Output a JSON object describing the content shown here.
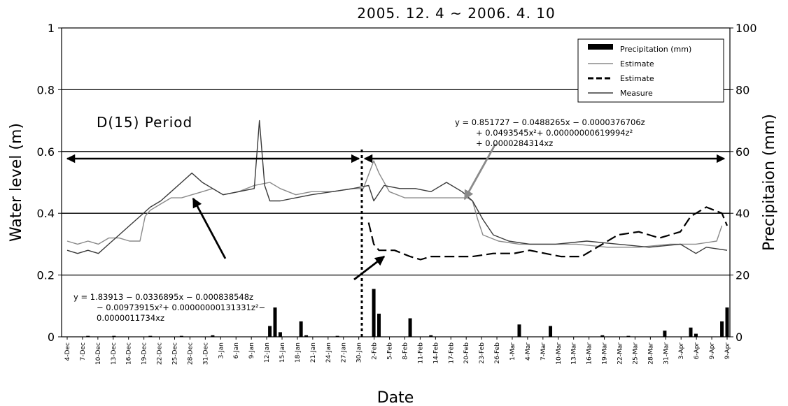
{
  "chart_data": {
    "type": "line",
    "title": "2005. 12. 4 ~ 2006. 4. 10",
    "xlabel": "Date",
    "ylabel": "Water level (m)",
    "y2label": "Precipitaion (mm)",
    "x_start": "2005-12-04",
    "x_end": "2006-04-10",
    "ylim": [
      0,
      1
    ],
    "yticks": [
      0,
      0.2,
      0.4,
      0.6,
      0.8,
      1
    ],
    "y2lim": [
      0,
      100
    ],
    "y2ticks": [
      0,
      20,
      40,
      60,
      80,
      100
    ],
    "xtick_labels": [
      "4-Dec",
      "7-Dec",
      "10-Dec",
      "13-Dec",
      "16-Dec",
      "19-Dec",
      "22-Dec",
      "25-Dec",
      "28-Dec",
      "31-Dec",
      "3-Jan",
      "6-Jan",
      "9-Jan",
      "12-Jan",
      "15-Jan",
      "18-Jan",
      "21-Jan",
      "24-Jan",
      "27-Jan",
      "30-Jan",
      "2-Feb",
      "5-Feb",
      "8-Feb",
      "11-Feb",
      "14-Feb",
      "17-Feb",
      "20-Feb",
      "23-Feb",
      "26-Feb",
      "1-Mar",
      "4-Mar",
      "7-Mar",
      "10-Mar",
      "13-Mar",
      "16-Mar",
      "19-Mar",
      "22-Mar",
      "25-Mar",
      "28-Mar",
      "31-Mar",
      "3-Apr",
      "6-Apr",
      "9-Apr",
      "9-Apr"
    ],
    "grid": "horizontal",
    "legend_position": "top-right",
    "legend": [
      "Precipitation (mm)",
      "Estimate",
      "Estimate",
      "Measure"
    ],
    "series": [
      {
        "name": "Precipitation (mm)",
        "kind": "bar",
        "axis": "right",
        "color": "#000000",
        "points": [
          [
            "2005-12-08",
            0.3
          ],
          [
            "2005-12-13",
            0.3
          ],
          [
            "2005-12-20",
            0.3
          ],
          [
            "2005-12-26",
            0.3
          ],
          [
            "2006-01-01",
            0.5
          ],
          [
            "2006-01-12",
            3.5
          ],
          [
            "2006-01-13",
            9.5
          ],
          [
            "2006-01-14",
            1.5
          ],
          [
            "2006-01-18",
            5
          ],
          [
            "2006-01-19",
            0.5
          ],
          [
            "2006-01-25",
            0.3
          ],
          [
            "2006-02-01",
            15.5
          ],
          [
            "2006-02-02",
            7.5
          ],
          [
            "2006-02-08",
            6
          ],
          [
            "2006-02-12",
            0.5
          ],
          [
            "2006-03-01",
            4
          ],
          [
            "2006-03-07",
            3.5
          ],
          [
            "2006-03-17",
            0.5
          ],
          [
            "2006-03-22",
            0.3
          ],
          [
            "2006-03-29",
            2
          ],
          [
            "2006-04-03",
            3
          ],
          [
            "2006-04-04",
            1
          ],
          [
            "2006-04-09",
            5
          ],
          [
            "2006-04-10",
            9.5
          ]
        ]
      },
      {
        "name": "Estimate",
        "kind": "line",
        "axis": "left",
        "color": "#8a8a8a",
        "style": "solid",
        "points": [
          [
            "2005-12-04",
            0.31
          ],
          [
            "2005-12-06",
            0.3
          ],
          [
            "2005-12-08",
            0.31
          ],
          [
            "2005-12-10",
            0.3
          ],
          [
            "2005-12-12",
            0.32
          ],
          [
            "2005-12-14",
            0.32
          ],
          [
            "2005-12-16",
            0.31
          ],
          [
            "2005-12-18",
            0.31
          ],
          [
            "2005-12-19",
            0.39
          ],
          [
            "2005-12-20",
            0.41
          ],
          [
            "2005-12-22",
            0.43
          ],
          [
            "2005-12-24",
            0.45
          ],
          [
            "2005-12-26",
            0.45
          ],
          [
            "2005-12-28",
            0.46
          ],
          [
            "2005-12-30",
            0.47
          ],
          [
            "2006-01-01",
            0.48
          ],
          [
            "2006-01-03",
            0.46
          ],
          [
            "2006-01-06",
            0.47
          ],
          [
            "2006-01-09",
            0.49
          ],
          [
            "2006-01-12",
            0.5
          ],
          [
            "2006-01-14",
            0.48
          ],
          [
            "2006-01-17",
            0.46
          ],
          [
            "2006-01-20",
            0.47
          ],
          [
            "2006-01-24",
            0.47
          ],
          [
            "2006-01-28",
            0.48
          ],
          [
            "2006-01-30",
            0.48
          ],
          [
            "2006-02-01",
            0.57
          ],
          [
            "2006-02-02",
            0.53
          ],
          [
            "2006-02-04",
            0.47
          ],
          [
            "2006-02-07",
            0.45
          ],
          [
            "2006-02-10",
            0.45
          ],
          [
            "2006-02-14",
            0.45
          ],
          [
            "2006-02-17",
            0.45
          ],
          [
            "2006-02-19",
            0.45
          ],
          [
            "2006-02-20",
            0.44
          ],
          [
            "2006-02-21",
            0.38
          ],
          [
            "2006-02-22",
            0.33
          ],
          [
            "2006-02-25",
            0.31
          ],
          [
            "2006-03-01",
            0.3
          ],
          [
            "2006-03-06",
            0.3
          ],
          [
            "2006-03-12",
            0.3
          ],
          [
            "2006-03-18",
            0.29
          ],
          [
            "2006-03-24",
            0.29
          ],
          [
            "2006-03-30",
            0.3
          ],
          [
            "2006-04-04",
            0.3
          ],
          [
            "2006-04-08",
            0.31
          ],
          [
            "2006-04-09",
            0.36
          ]
        ]
      },
      {
        "name": "Estimate",
        "kind": "line",
        "axis": "left",
        "color": "#000000",
        "style": "dashed",
        "points": [
          [
            "2006-01-31",
            0.37
          ],
          [
            "2006-02-01",
            0.3
          ],
          [
            "2006-02-02",
            0.28
          ],
          [
            "2006-02-05",
            0.28
          ],
          [
            "2006-02-08",
            0.26
          ],
          [
            "2006-02-10",
            0.25
          ],
          [
            "2006-02-12",
            0.26
          ],
          [
            "2006-02-16",
            0.26
          ],
          [
            "2006-02-20",
            0.26
          ],
          [
            "2006-02-24",
            0.27
          ],
          [
            "2006-02-28",
            0.27
          ],
          [
            "2006-03-03",
            0.28
          ],
          [
            "2006-03-06",
            0.27
          ],
          [
            "2006-03-09",
            0.26
          ],
          [
            "2006-03-13",
            0.26
          ],
          [
            "2006-03-17",
            0.3
          ],
          [
            "2006-03-20",
            0.33
          ],
          [
            "2006-03-24",
            0.34
          ],
          [
            "2006-03-28",
            0.32
          ],
          [
            "2006-04-01",
            0.34
          ],
          [
            "2006-04-03",
            0.39
          ],
          [
            "2006-04-06",
            0.42
          ],
          [
            "2006-04-09",
            0.4
          ],
          [
            "2006-04-10",
            0.36
          ]
        ]
      },
      {
        "name": "Measure",
        "kind": "line",
        "axis": "left",
        "color": "#3a3a3a",
        "style": "solid",
        "points": [
          [
            "2005-12-04",
            0.28
          ],
          [
            "2005-12-06",
            0.27
          ],
          [
            "2005-12-08",
            0.28
          ],
          [
            "2005-12-10",
            0.27
          ],
          [
            "2005-12-12",
            0.3
          ],
          [
            "2005-12-14",
            0.33
          ],
          [
            "2005-12-16",
            0.36
          ],
          [
            "2005-12-18",
            0.39
          ],
          [
            "2005-12-20",
            0.42
          ],
          [
            "2005-12-22",
            0.44
          ],
          [
            "2005-12-24",
            0.47
          ],
          [
            "2005-12-26",
            0.5
          ],
          [
            "2005-12-28",
            0.53
          ],
          [
            "2005-12-30",
            0.5
          ],
          [
            "2006-01-01",
            0.48
          ],
          [
            "2006-01-03",
            0.46
          ],
          [
            "2006-01-06",
            0.47
          ],
          [
            "2006-01-09",
            0.48
          ],
          [
            "2006-01-10",
            0.7
          ],
          [
            "2006-01-11",
            0.49
          ],
          [
            "2006-01-12",
            0.44
          ],
          [
            "2006-01-14",
            0.44
          ],
          [
            "2006-01-17",
            0.45
          ],
          [
            "2006-01-20",
            0.46
          ],
          [
            "2006-01-24",
            0.47
          ],
          [
            "2006-01-28",
            0.48
          ],
          [
            "2006-01-31",
            0.49
          ],
          [
            "2006-02-01",
            0.44
          ],
          [
            "2006-02-03",
            0.49
          ],
          [
            "2006-02-06",
            0.48
          ],
          [
            "2006-02-09",
            0.48
          ],
          [
            "2006-02-12",
            0.47
          ],
          [
            "2006-02-15",
            0.5
          ],
          [
            "2006-02-18",
            0.47
          ],
          [
            "2006-02-20",
            0.44
          ],
          [
            "2006-02-22",
            0.38
          ],
          [
            "2006-02-24",
            0.33
          ],
          [
            "2006-02-27",
            0.31
          ],
          [
            "2006-03-03",
            0.3
          ],
          [
            "2006-03-08",
            0.3
          ],
          [
            "2006-03-14",
            0.31
          ],
          [
            "2006-03-20",
            0.3
          ],
          [
            "2006-03-26",
            0.29
          ],
          [
            "2006-04-01",
            0.3
          ],
          [
            "2006-04-04",
            0.27
          ],
          [
            "2006-04-06",
            0.29
          ],
          [
            "2006-04-10",
            0.28
          ]
        ]
      }
    ],
    "annotations": {
      "period_label": "D(15) Period",
      "period_span": [
        "2005-12-04",
        "2006-04-10"
      ],
      "split_date": "2006-01-31",
      "period_level": 0.59,
      "equation_right": [
        "y = 0.851727 − 0.0488265x − 0.0000376706z",
        "+ 0.0493545x²+ 0.00000000619994z²",
        "+ 0.0000284314xz"
      ],
      "equation_left": [
        "y = 1.83913 − 0.0336895x − 0.000838548z",
        "− 0.00973915x²+ 0.00000000131331z²−",
        "0.0000011734xz"
      ]
    }
  }
}
